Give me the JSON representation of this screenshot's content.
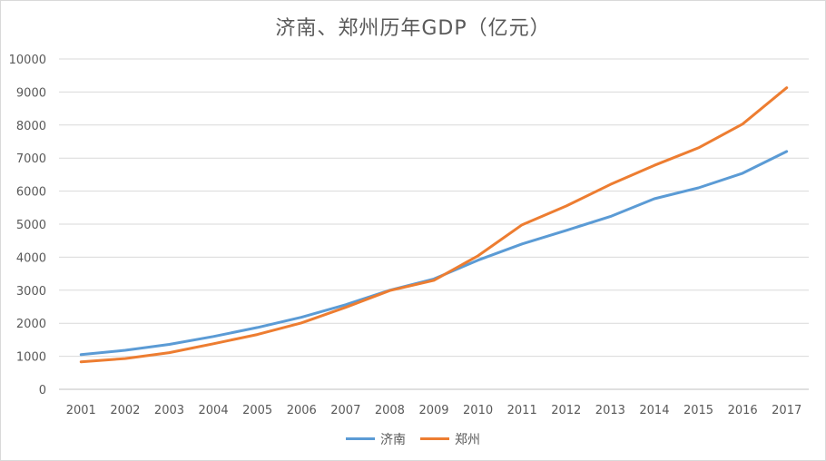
{
  "chart_data": {
    "type": "line",
    "title": "济南、郑州历年GDP（亿元）",
    "xlabel": "",
    "ylabel": "",
    "categories": [
      "2001",
      "2002",
      "2003",
      "2004",
      "2005",
      "2006",
      "2007",
      "2008",
      "2009",
      "2010",
      "2011",
      "2012",
      "2013",
      "2014",
      "2015",
      "2016",
      "2017"
    ],
    "ylim": [
      0,
      10000
    ],
    "yticks": [
      0,
      1000,
      2000,
      3000,
      4000,
      5000,
      6000,
      7000,
      8000,
      9000,
      10000
    ],
    "legend_position": "bottom",
    "series": [
      {
        "name": "济南",
        "color": "#5b9bd5",
        "values": [
          1050,
          1180,
          1360,
          1600,
          1870,
          2180,
          2560,
          3000,
          3340,
          3910,
          4400,
          4810,
          5230,
          5770,
          6100,
          6540,
          7200
        ]
      },
      {
        "name": "郑州",
        "color": "#ed7d31",
        "values": [
          830,
          930,
          1110,
          1380,
          1660,
          2010,
          2480,
          2990,
          3300,
          4040,
          4980,
          5550,
          6200,
          6780,
          7310,
          8030,
          9130
        ]
      }
    ]
  }
}
